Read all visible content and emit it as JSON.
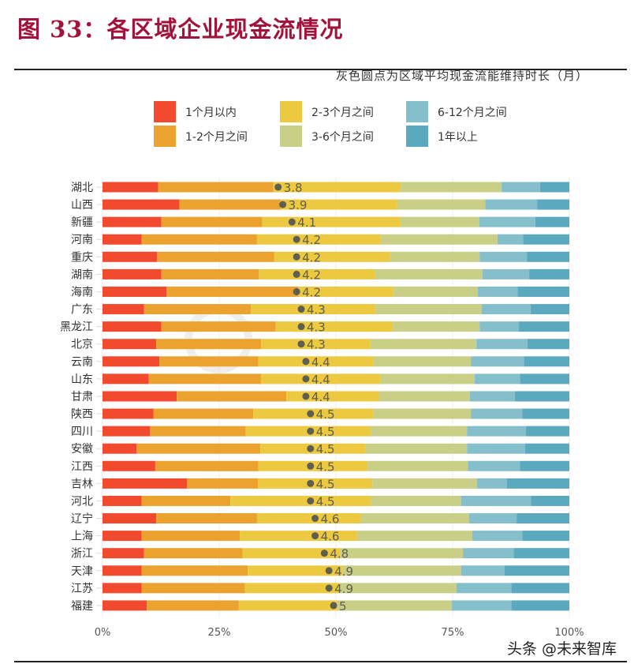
{
  "title": "图 33：各区域企业现金流情况",
  "watermark": "头条 @未来智库",
  "watermark_logo": "招商银行 CHINA MERCHANTS BANK",
  "chart_data": {
    "type": "bar",
    "orientation": "horizontal",
    "stacked": "percent",
    "subtitle": "灰色圆点为区域平均现金流能维持时长（月）",
    "legend_position": "top",
    "grid": true,
    "xlim": [
      0,
      100
    ],
    "x_ticks": [
      "0%",
      "25%",
      "50%",
      "75%",
      "100%"
    ],
    "categories": [
      "湖北",
      "山西",
      "新疆",
      "河南",
      "重庆",
      "湖南",
      "海南",
      "广东",
      "黑龙江",
      "北京",
      "云南",
      "山东",
      "甘肃",
      "陕西",
      "四川",
      "安徽",
      "江西",
      "吉林",
      "河北",
      "辽宁",
      "上海",
      "浙江",
      "天津",
      "江苏",
      "福建"
    ],
    "series": [
      {
        "name": "1个月以内",
        "color": "#f24a2e",
        "values": [
          11.9,
          16.5,
          12.6,
          8.4,
          11.7,
          12.6,
          13.7,
          8.9,
          12.6,
          11.5,
          12.2,
          9.9,
          15.9,
          10.9,
          10.2,
          7.3,
          11.3,
          18.1,
          8.4,
          11.5,
          8.4,
          8.9,
          8.4,
          8.4,
          9.5
        ]
      },
      {
        "name": "1-2个月之间",
        "color": "#eba22f",
        "values": [
          24.7,
          21.6,
          21.6,
          24.7,
          25.1,
          20.9,
          28.3,
          22.9,
          24.5,
          22.5,
          21.2,
          24.1,
          23.5,
          21.4,
          20.5,
          26.5,
          22.1,
          15.2,
          19.0,
          21.6,
          21.0,
          21.1,
          22.7,
          22.1,
          19.7
        ]
      },
      {
        "name": "2-3个月之间",
        "color": "#ecc940",
        "values": [
          27.3,
          25.0,
          29.5,
          26.5,
          24.8,
          24.8,
          20.3,
          26.7,
          25.1,
          23.3,
          24.6,
          25.6,
          19.8,
          25.7,
          26.8,
          22.6,
          23.4,
          24.5,
          30.1,
          22.3,
          25.1,
          20.9,
          20.4,
          20.4,
          21.0
        ]
      },
      {
        "name": "3-6个月之间",
        "color": "#c9cf86",
        "values": [
          21.6,
          18.9,
          17.0,
          25.0,
          19.2,
          23.1,
          18.1,
          22.7,
          18.6,
          22.8,
          20.9,
          20.1,
          19.5,
          20.9,
          20.6,
          21.7,
          21.5,
          22.4,
          19.3,
          23.1,
          24.7,
          26.3,
          25.3,
          24.9,
          24.6
        ]
      },
      {
        "name": "6-12个月之间",
        "color": "#86bfcc",
        "values": [
          8.2,
          11.1,
          12.0,
          5.5,
          10.1,
          10.0,
          8.5,
          10.5,
          8.4,
          10.9,
          11.4,
          9.7,
          9.6,
          11.0,
          12.6,
          12.4,
          11.1,
          6.4,
          15.0,
          10.2,
          10.7,
          10.9,
          9.3,
          11.8,
          12.8
        ]
      },
      {
        "name": "1年以上",
        "color": "#5aa9be",
        "values": [
          6.3,
          6.9,
          7.3,
          9.9,
          9.1,
          8.6,
          11.1,
          8.3,
          10.8,
          9.0,
          9.7,
          10.6,
          11.7,
          10.1,
          9.3,
          9.5,
          10.6,
          13.4,
          8.2,
          11.3,
          10.1,
          11.9,
          13.9,
          12.4,
          12.4
        ]
      }
    ],
    "average_months": {
      "color": "#5f5f50",
      "values": [
        3.8,
        3.9,
        4.1,
        4.2,
        4.2,
        4.2,
        4.2,
        4.3,
        4.3,
        4.3,
        4.4,
        4.4,
        4.4,
        4.5,
        4.5,
        4.5,
        4.5,
        4.5,
        4.5,
        4.6,
        4.6,
        4.8,
        4.9,
        4.9,
        5
      ]
    }
  }
}
